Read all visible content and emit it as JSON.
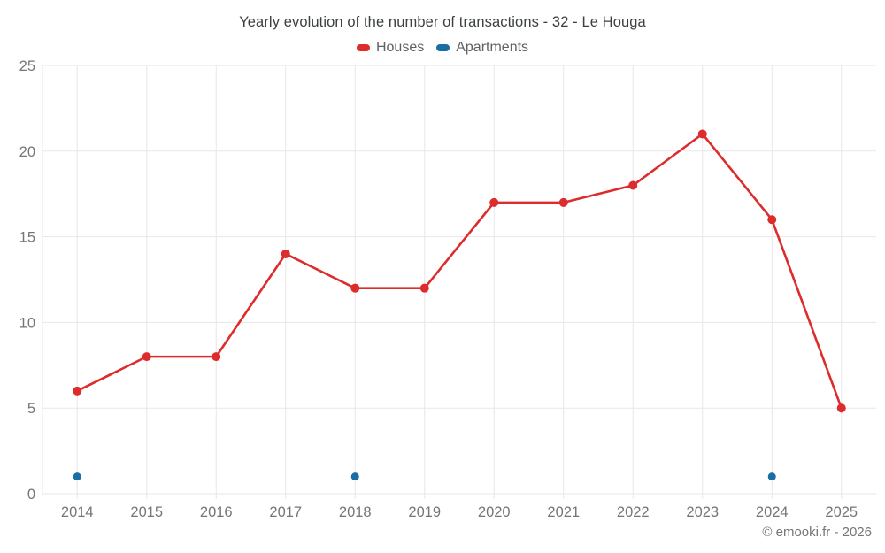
{
  "chart_data": {
    "type": "line",
    "title": "Yearly evolution of the number of transactions - 32 - Le Houga",
    "x": [
      2014,
      2015,
      2016,
      2017,
      2018,
      2019,
      2020,
      2021,
      2022,
      2023,
      2024,
      2025
    ],
    "series": [
      {
        "name": "Houses",
        "color": "#dd2c2c",
        "marker_radius": 5,
        "line_width": 2.6,
        "values": [
          6,
          8,
          8,
          14,
          12,
          12,
          17,
          17,
          18,
          21,
          16,
          5
        ]
      },
      {
        "name": "Apartments",
        "color": "#1b6ea5",
        "marker_radius": 4.5,
        "line_width": 2.6,
        "values": [
          1,
          null,
          null,
          null,
          1,
          null,
          null,
          null,
          null,
          null,
          1,
          null
        ]
      }
    ],
    "xlabel": "",
    "ylabel": "",
    "ylim": [
      0,
      25
    ],
    "ytick_step": 5,
    "yticks": [
      0,
      5,
      10,
      15,
      20,
      25
    ],
    "grid": true,
    "legend_position": "top"
  },
  "styles": {
    "grid_color": "#e7e7e7",
    "tick_label_color": "#757575",
    "title_color": "#3c4043"
  },
  "footer": {
    "credit": "© emooki.fr - 2026"
  }
}
